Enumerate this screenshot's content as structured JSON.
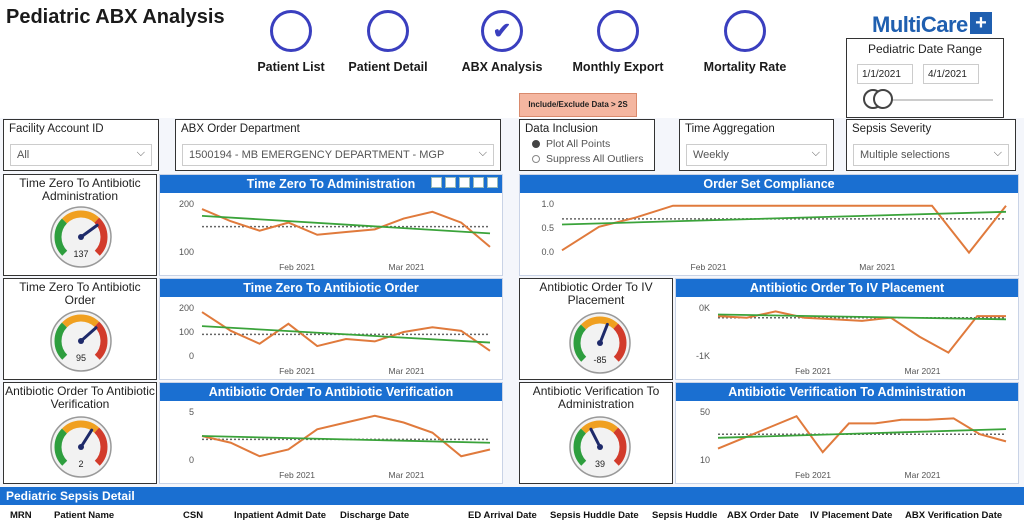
{
  "header": {
    "title": "Pediatric ABX Analysis",
    "logo_text": "MultiCare",
    "logo_cross": "+",
    "nav": [
      {
        "label": "Patient List",
        "checked": false
      },
      {
        "label": "Patient Detail",
        "checked": false
      },
      {
        "label": "ABX Analysis",
        "checked": true
      },
      {
        "label": "Monthly Export",
        "checked": false
      },
      {
        "label": "Mortality Rate",
        "checked": false
      }
    ],
    "check_glyph": "✔"
  },
  "date_range": {
    "title": "Pediatric Date Range",
    "start": "1/1/2021",
    "end": "4/1/2021"
  },
  "toggle_button": "Include/Exclude Data > 2S",
  "slicers": {
    "facility": {
      "title": "Facility Account ID",
      "value": "All"
    },
    "department": {
      "title": "ABX Order Department",
      "value": "1500194 - MB EMERGENCY DEPARTMENT - MGP"
    },
    "inclusion": {
      "title": "Data Inclusion",
      "options": [
        "Plot All Points",
        "Suppress All Outliers"
      ],
      "selected": 0
    },
    "aggregation": {
      "title": "Time Aggregation",
      "value": "Weekly"
    },
    "sepsis": {
      "title": "Sepsis Severity",
      "value": "Multiple selections"
    }
  },
  "chevron": "⌵",
  "gauges": [
    {
      "title": "Time Zero To Antibiotic Administration",
      "value": "137",
      "level": 0.7
    },
    {
      "title": "Time Zero To Antibiotic Order",
      "value": "95",
      "level": 0.68
    },
    {
      "title": "Antibiotic Order To Antibiotic Verification",
      "value": "2",
      "level": 0.62
    },
    {
      "title": "Antibiotic Order To IV Placement",
      "value": "-85",
      "level": 0.58
    },
    {
      "title": "Antibiotic Verification To Administration",
      "value": "39",
      "level": 0.4
    }
  ],
  "colors": {
    "accent": "#1a6fd1",
    "series": "#e07a3c",
    "trend": "#3aa33a",
    "mean": "#666666",
    "nav": "#3a3fbf"
  },
  "chart_data": [
    {
      "type": "line",
      "title": "Time Zero To Administration",
      "x_ticks": [
        "Feb 2021",
        "Mar 2021"
      ],
      "y_ticks": [
        "200",
        "100"
      ],
      "ylim": [
        30,
        230
      ],
      "series": [
        {
          "values": [
            200,
            155,
            120,
            150,
            105,
            115,
            125,
            165,
            190,
            150,
            60
          ]
        }
      ],
      "trend": [
        175,
        110
      ],
      "mean": 135
    },
    {
      "type": "line",
      "title": "Order Set Compliance",
      "x_ticks": [
        "Feb 2021",
        "Mar 2021"
      ],
      "y_ticks": [
        "1.0",
        "0.5",
        "0.0"
      ],
      "ylim": [
        -0.05,
        1.1
      ],
      "series": [
        {
          "values": [
            0.05,
            0.55,
            0.75,
            1.0,
            1.0,
            1.0,
            1.0,
            1.0,
            1.0,
            1.0,
            1.0,
            0.0,
            1.0
          ]
        }
      ],
      "trend": [
        0.6,
        0.87
      ],
      "mean": 0.72
    },
    {
      "type": "line",
      "title": "Time Zero To Antibiotic Order",
      "x_ticks": [
        "Feb 2021",
        "Mar 2021"
      ],
      "y_ticks": [
        "200",
        "100",
        "0"
      ],
      "ylim": [
        -10,
        220
      ],
      "series": [
        {
          "values": [
            190,
            110,
            55,
            140,
            45,
            75,
            65,
            105,
            125,
            110,
            25
          ]
        }
      ],
      "trend": [
        130,
        60
      ],
      "mean": 95
    },
    {
      "type": "line",
      "title": "Antibiotic Order To IV Placement",
      "x_ticks": [
        "Feb 2021",
        "Mar 2021"
      ],
      "y_ticks": [
        "0K",
        "-1K"
      ],
      "ylim": [
        -1400,
        300
      ],
      "series": [
        {
          "values": [
            -50,
            -100,
            100,
            -100,
            -150,
            -200,
            -100,
            -700,
            -1200,
            -50,
            -50
          ]
        }
      ],
      "trend": [
        0,
        -150
      ],
      "mean": -100
    },
    {
      "type": "line",
      "title": "Antibiotic Order To Antibiotic Verification",
      "x_ticks": [
        "Feb 2021",
        "Mar 2021"
      ],
      "y_ticks": [
        "5",
        "0"
      ],
      "ylim": [
        -1,
        7
      ],
      "series": [
        {
          "values": [
            3,
            2,
            0,
            1,
            4,
            5,
            6,
            5,
            3.5,
            0,
            1
          ]
        }
      ],
      "trend": [
        3,
        2
      ],
      "mean": 2.5
    },
    {
      "type": "line",
      "title": "Antibiotic Verification To Administration",
      "x_ticks": [
        "Feb 2021",
        "Mar 2021"
      ],
      "y_ticks": [
        "50",
        "10"
      ],
      "ylim": [
        0,
        75
      ],
      "series": [
        {
          "values": [
            20,
            35,
            50,
            65,
            15,
            55,
            55,
            60,
            60,
            62,
            40,
            30
          ]
        }
      ],
      "trend": [
        35,
        47
      ],
      "mean": 40
    }
  ],
  "detail_table": {
    "title": "Pediatric Sepsis Detail",
    "columns": [
      "MRN",
      "Patient Name",
      "CSN",
      "Inpatient Admit Date",
      "Discharge Date",
      "ED Arrival Date",
      "Sepsis Huddle Date",
      "Sepsis Huddle",
      "ABX Order Date",
      "IV Placement Date",
      "ABX Verification Date"
    ]
  }
}
